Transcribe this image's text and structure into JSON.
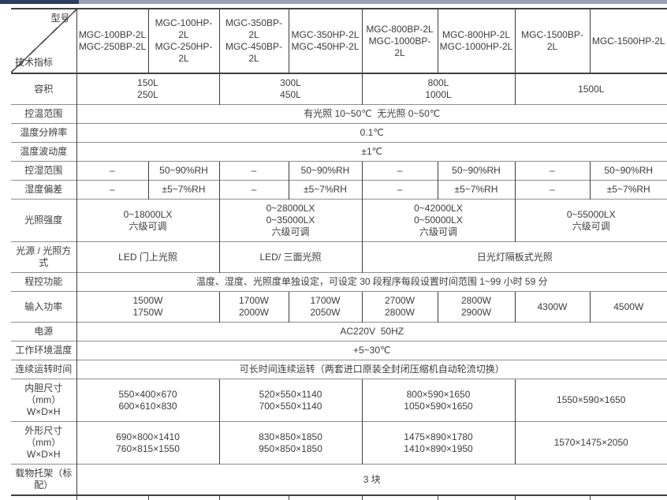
{
  "colors": {
    "topbar_dark": "#2c3b60",
    "topbar_light": "#9ba3b6",
    "line_vertical": "#3c3c3c",
    "line_horizontal": "#8e8e8e",
    "text": "#3c3c3c"
  },
  "table": {
    "corner": {
      "top_right": "型号",
      "bottom_left": "技术指标"
    },
    "models": [
      [
        "MGC-100BP-2L",
        "MGC-250BP-2L"
      ],
      [
        "MGC-100HP-2L",
        "MGC-250HP-2L"
      ],
      [
        "MGC-350BP-2L",
        "MGC-450BP-2L"
      ],
      [
        "MGC-350HP-2L",
        "MGC-450HP-2L"
      ],
      [
        "MGC-800BP-2L",
        "MGC-1000BP-2L"
      ],
      [
        "MGC-800HP-2L",
        "MGC-1000HP-2L"
      ],
      [
        "MGC-1500BP-2L"
      ],
      [
        "MGC-1500HP-2L"
      ]
    ],
    "rows": [
      {
        "label": [
          "容积"
        ],
        "cells": [
          {
            "span": 2,
            "lines": [
              "150L",
              "250L"
            ]
          },
          {
            "span": 2,
            "lines": [
              "300L",
              "450L"
            ]
          },
          {
            "span": 2,
            "lines": [
              "800L",
              "1000L"
            ]
          },
          {
            "span": 2,
            "lines": [
              "1500L"
            ]
          }
        ]
      },
      {
        "label": [
          "控温范围"
        ],
        "cells": [
          {
            "span": 8,
            "lines": [
              "有光照 10~50℃  无光照 0~50℃"
            ]
          }
        ]
      },
      {
        "label": [
          "温度分辨率"
        ],
        "cells": [
          {
            "span": 8,
            "lines": [
              "0.1℃"
            ]
          }
        ]
      },
      {
        "label": [
          "温度波动度"
        ],
        "cells": [
          {
            "span": 8,
            "lines": [
              "±1℃"
            ]
          }
        ]
      },
      {
        "label": [
          "控湿范围"
        ],
        "cells": [
          {
            "span": 1,
            "lines": [
              "–"
            ]
          },
          {
            "span": 1,
            "lines": [
              "50~90%RH"
            ]
          },
          {
            "span": 1,
            "lines": [
              "–"
            ]
          },
          {
            "span": 1,
            "lines": [
              "50~90%RH"
            ]
          },
          {
            "span": 1,
            "lines": [
              "–"
            ]
          },
          {
            "span": 1,
            "lines": [
              "50~90%RH"
            ]
          },
          {
            "span": 1,
            "lines": [
              "–"
            ]
          },
          {
            "span": 1,
            "lines": [
              "50~90%RH"
            ]
          }
        ]
      },
      {
        "label": [
          "湿度偏差"
        ],
        "cells": [
          {
            "span": 1,
            "lines": [
              "–"
            ]
          },
          {
            "span": 1,
            "lines": [
              "±5~7%RH"
            ]
          },
          {
            "span": 1,
            "lines": [
              "–"
            ]
          },
          {
            "span": 1,
            "lines": [
              "±5~7%RH"
            ]
          },
          {
            "span": 1,
            "lines": [
              "–"
            ]
          },
          {
            "span": 1,
            "lines": [
              "±5~7%RH"
            ]
          },
          {
            "span": 1,
            "lines": [
              "–"
            ]
          },
          {
            "span": 1,
            "lines": [
              "±5~7%RH"
            ]
          }
        ]
      },
      {
        "label": [
          "光照强度"
        ],
        "cells": [
          {
            "span": 2,
            "lines": [
              "0~18000LX",
              "六级可调"
            ]
          },
          {
            "span": 2,
            "lines": [
              "0~28000LX",
              "0~35000LX",
              "六级可调"
            ]
          },
          {
            "span": 2,
            "lines": [
              "0~42000LX",
              "0~50000LX",
              "六级可调"
            ]
          },
          {
            "span": 2,
            "lines": [
              "0~55000LX",
              "六级可调"
            ]
          }
        ]
      },
      {
        "label": [
          "光源 / 光照方式"
        ],
        "cells": [
          {
            "span": 2,
            "lines": [
              "LED 门上光照"
            ]
          },
          {
            "span": 2,
            "lines": [
              "LED/ 三面光照"
            ]
          },
          {
            "span": 4,
            "lines": [
              "日光灯隔板式光照"
            ]
          }
        ]
      },
      {
        "label": [
          "程控功能"
        ],
        "cells": [
          {
            "span": 8,
            "lines": [
              "温度、湿度、光照度单独设定，可设定 30 段程序每段设置时间范围 1~99 小时 59 分"
            ]
          }
        ]
      },
      {
        "label": [
          "输入功率"
        ],
        "cells": [
          {
            "span": 2,
            "lines": [
              "1500W",
              "1750W"
            ]
          },
          {
            "span": 1,
            "lines": [
              "1700W",
              "2000W"
            ]
          },
          {
            "span": 1,
            "lines": [
              "1700W",
              "2050W"
            ]
          },
          {
            "span": 1,
            "lines": [
              "2700W",
              "2800W"
            ]
          },
          {
            "span": 1,
            "lines": [
              "2800W",
              "2900W"
            ]
          },
          {
            "span": 1,
            "lines": [
              "4300W"
            ]
          },
          {
            "span": 1,
            "lines": [
              "4500W"
            ]
          }
        ]
      },
      {
        "label": [
          "电源"
        ],
        "cells": [
          {
            "span": 8,
            "lines": [
              "AC220V  50HZ"
            ]
          }
        ]
      },
      {
        "label": [
          "工作环境温度"
        ],
        "cells": [
          {
            "span": 8,
            "lines": [
              "+5~30℃"
            ]
          }
        ]
      },
      {
        "label": [
          "连续运转时间"
        ],
        "cells": [
          {
            "span": 8,
            "lines": [
              "可长时间连续运转（两套进口原装全封闭压缩机自动轮流切换）"
            ]
          }
        ]
      },
      {
        "label": [
          "内胆尺寸（mm）",
          "W×D×H"
        ],
        "cells": [
          {
            "span": 2,
            "lines": [
              "550×400×670",
              "600×610×830"
            ]
          },
          {
            "span": 2,
            "lines": [
              "520×550×1140",
              "700×550×1140"
            ]
          },
          {
            "span": 2,
            "lines": [
              "800×590×1650",
              "1050×590×1650"
            ]
          },
          {
            "span": 2,
            "lines": [
              "1550×590×1650"
            ]
          }
        ]
      },
      {
        "label": [
          "外形尺寸（mm）",
          "W×D×H"
        ],
        "cells": [
          {
            "span": 2,
            "lines": [
              "690×800×1410",
              "760×815×1550"
            ]
          },
          {
            "span": 2,
            "lines": [
              "830×850×1850",
              "950×850×1850"
            ]
          },
          {
            "span": 2,
            "lines": [
              "1475×890×1780",
              "1410×890×1950"
            ]
          },
          {
            "span": 2,
            "lines": [
              "1570×1475×2050"
            ]
          }
        ]
      },
      {
        "label": [
          "载物托架（标配）"
        ],
        "cells": [
          {
            "span": 8,
            "lines": [
              "3 块"
            ]
          }
        ]
      }
    ]
  }
}
